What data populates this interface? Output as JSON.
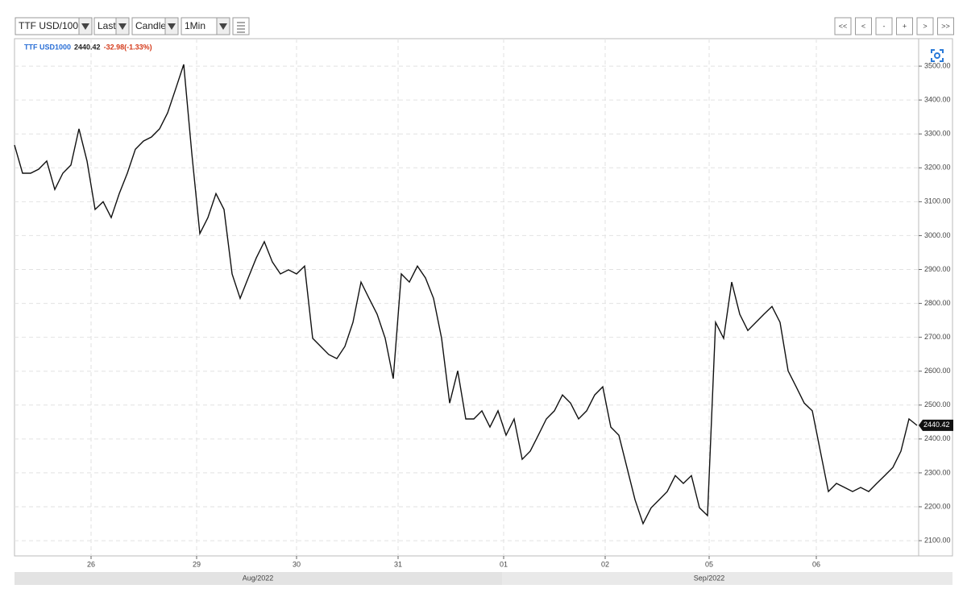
{
  "toolbar": {
    "symbol": "TTF USD/100",
    "field": "Last",
    "style": "Candle",
    "interval": "1Min",
    "nav": [
      "<<",
      "<",
      "-",
      "+",
      ">",
      ">>"
    ]
  },
  "chart_data": {
    "type": "line",
    "legend": {
      "symbol": "TTF USD1000",
      "last": 2440.42,
      "change": "-32.98(-1.33%)"
    },
    "color": "#111111",
    "grid": true,
    "x": [
      0,
      1,
      2,
      3,
      4,
      5,
      6,
      7,
      8,
      9,
      10,
      11,
      12,
      13,
      14,
      15,
      16,
      17,
      18,
      19,
      20,
      21,
      22,
      23,
      24,
      25,
      26,
      27,
      28,
      29,
      30,
      31,
      32,
      33,
      34,
      35,
      36,
      37,
      38,
      39,
      40,
      41,
      42,
      43,
      44,
      45,
      46,
      47,
      48,
      49,
      50,
      51,
      52,
      53,
      54,
      55,
      56,
      57,
      58,
      59,
      60,
      61,
      62,
      63,
      64,
      65,
      66,
      67,
      68,
      69,
      70,
      71,
      72,
      73,
      74,
      75,
      76,
      77,
      78,
      79,
      80,
      81,
      82,
      83,
      84,
      85,
      86,
      87,
      88,
      89,
      90,
      91,
      92,
      93,
      94,
      95,
      96,
      97,
      98,
      99,
      100,
      101,
      102,
      103,
      104,
      105,
      106,
      107,
      108,
      109,
      110,
      111,
      112
    ],
    "values": [
      3267,
      3184,
      3184,
      3196,
      3220,
      3136,
      3184,
      3208,
      3315,
      3220,
      3077,
      3100,
      3053,
      3124,
      3184,
      3255,
      3279,
      3291,
      3315,
      3362,
      3433,
      3505,
      3243,
      3006,
      3053,
      3124,
      3077,
      2887,
      2815,
      2875,
      2934,
      2982,
      2922,
      2887,
      2899,
      2887,
      2910,
      2697,
      2673,
      2649,
      2637,
      2673,
      2744,
      2863,
      2815,
      2768,
      2697,
      2578,
      2887,
      2863,
      2910,
      2875,
      2815,
      2697,
      2506,
      2601,
      2459,
      2459,
      2483,
      2435,
      2483,
      2411,
      2459,
      2340,
      2364,
      2411,
      2459,
      2483,
      2530,
      2506,
      2459,
      2483,
      2530,
      2554,
      2435,
      2411,
      2316,
      2221,
      2150,
      2197,
      2221,
      2245,
      2292,
      2269,
      2292,
      2197,
      2174,
      2744,
      2697,
      2863,
      2768,
      2720,
      2744,
      2768,
      2791,
      2744,
      2601,
      2554,
      2506,
      2483,
      2364,
      2245,
      2269,
      2257,
      2245,
      2257,
      2245,
      2269,
      2292,
      2316,
      2364,
      2459,
      2440
    ],
    "xlim": [
      0,
      112.2
    ],
    "xticks": [
      {
        "value": 9.5,
        "label": "26"
      },
      {
        "value": 22.6,
        "label": "29"
      },
      {
        "value": 35.0,
        "label": "30"
      },
      {
        "value": 47.6,
        "label": "31"
      },
      {
        "value": 60.7,
        "label": "01"
      },
      {
        "value": 73.3,
        "label": "02"
      },
      {
        "value": 86.2,
        "label": "05"
      },
      {
        "value": 99.5,
        "label": "06"
      }
    ],
    "ylim": [
      2055,
      3581
    ],
    "yticks": [
      {
        "value": 2100,
        "label": "2100.00"
      },
      {
        "value": 2200,
        "label": "2200.00"
      },
      {
        "value": 2300,
        "label": "2300.00"
      },
      {
        "value": 2400,
        "label": "2400.00"
      },
      {
        "value": 2500,
        "label": "2500.00"
      },
      {
        "value": 2600,
        "label": "2600.00"
      },
      {
        "value": 2700,
        "label": "2700.00"
      },
      {
        "value": 2800,
        "label": "2800.00"
      },
      {
        "value": 2900,
        "label": "2900.00"
      },
      {
        "value": 3000,
        "label": "3000.00"
      },
      {
        "value": 3100,
        "label": "3100.00"
      },
      {
        "value": 3200,
        "label": "3200.00"
      },
      {
        "value": 3300,
        "label": "3300.00"
      },
      {
        "value": 3400,
        "label": "3400.00"
      },
      {
        "value": 3500,
        "label": "3500.00"
      }
    ],
    "months": [
      "Aug/2022",
      "Sep/2022"
    ]
  }
}
